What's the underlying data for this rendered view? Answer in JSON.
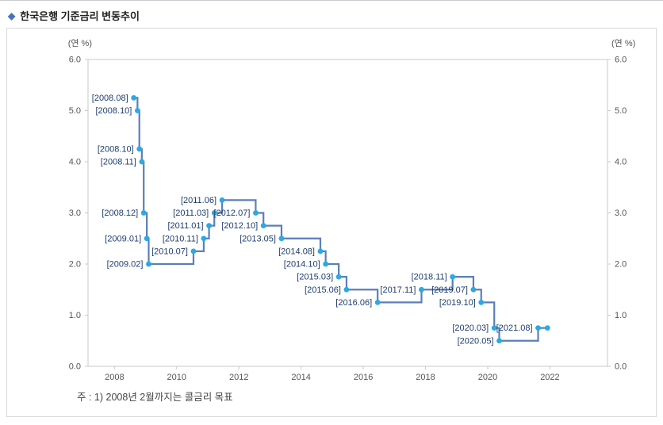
{
  "header": {
    "bullet": "◆",
    "title": "한국은행 기준금리 변동추이"
  },
  "footnote": "주 : 1) 2008년 2월까지는 콜금리 목표",
  "chart_data": {
    "type": "line",
    "subtype": "step",
    "title": "한국은행 기준금리 변동추이",
    "y_axis_label_left": "(연 %)",
    "y_axis_label_right": "(연 %)",
    "ylim": [
      0.0,
      6.0
    ],
    "y_ticks": [
      "0.0",
      "1.0",
      "2.0",
      "3.0",
      "4.0",
      "5.0",
      "6.0"
    ],
    "x_ticks": [
      2008,
      2010,
      2012,
      2014,
      2016,
      2018,
      2020,
      2022
    ],
    "xlim": [
      2007.15,
      2023.85
    ],
    "grid": false,
    "legend": false,
    "colors": {
      "line": "#5b7fb8",
      "marker": "#29aae1",
      "label": "#1f3c6d",
      "axis": "#c8c8c8",
      "tick_text": "#555555",
      "title_bullet": "#4a72b8"
    },
    "points": [
      {
        "label": "[2008.08]",
        "t": 2008.62,
        "rate": 5.25
      },
      {
        "label": "[2008.10]",
        "t": 2008.74,
        "rate": 5.0
      },
      {
        "label": "[2008.10]",
        "t": 2008.8,
        "rate": 4.25
      },
      {
        "label": "[2008.11]",
        "t": 2008.88,
        "rate": 4.0
      },
      {
        "label": "[2008.12]",
        "t": 2008.94,
        "rate": 3.0
      },
      {
        "label": "[2009.01]",
        "t": 2009.04,
        "rate": 2.5
      },
      {
        "label": "[2009.02]",
        "t": 2009.1,
        "rate": 2.0
      },
      {
        "label": "[2010.07]",
        "t": 2010.54,
        "rate": 2.25
      },
      {
        "label": "[2010.11]",
        "t": 2010.87,
        "rate": 2.5
      },
      {
        "label": "[2011.01]",
        "t": 2011.04,
        "rate": 2.75
      },
      {
        "label": "[2011.03]",
        "t": 2011.21,
        "rate": 3.0
      },
      {
        "label": "[2011.06]",
        "t": 2011.46,
        "rate": 3.25
      },
      {
        "label": "[2012.07]",
        "t": 2012.54,
        "rate": 3.0
      },
      {
        "label": "[2012.10]",
        "t": 2012.79,
        "rate": 2.75
      },
      {
        "label": "[2013.05]",
        "t": 2013.37,
        "rate": 2.5
      },
      {
        "label": "[2014.08]",
        "t": 2014.62,
        "rate": 2.25
      },
      {
        "label": "[2014.10]",
        "t": 2014.79,
        "rate": 2.0
      },
      {
        "label": "[2015.03]",
        "t": 2015.21,
        "rate": 1.75
      },
      {
        "label": "[2015.06]",
        "t": 2015.46,
        "rate": 1.5
      },
      {
        "label": "[2016.06]",
        "t": 2016.46,
        "rate": 1.25
      },
      {
        "label": "[2017.11]",
        "t": 2017.87,
        "rate": 1.5
      },
      {
        "label": "[2018.11]",
        "t": 2018.87,
        "rate": 1.75
      },
      {
        "label": "[2019.07]",
        "t": 2019.54,
        "rate": 1.5
      },
      {
        "label": "[2019.10]",
        "t": 2019.79,
        "rate": 1.25
      },
      {
        "label": "[2020.03]",
        "t": 2020.21,
        "rate": 0.75
      },
      {
        "label": "[2020.05]",
        "t": 2020.37,
        "rate": 0.5
      },
      {
        "label": "[2021.08]",
        "t": 2021.62,
        "rate": 0.75
      },
      {
        "label": "",
        "t": 2021.92,
        "rate": 0.75
      }
    ]
  }
}
